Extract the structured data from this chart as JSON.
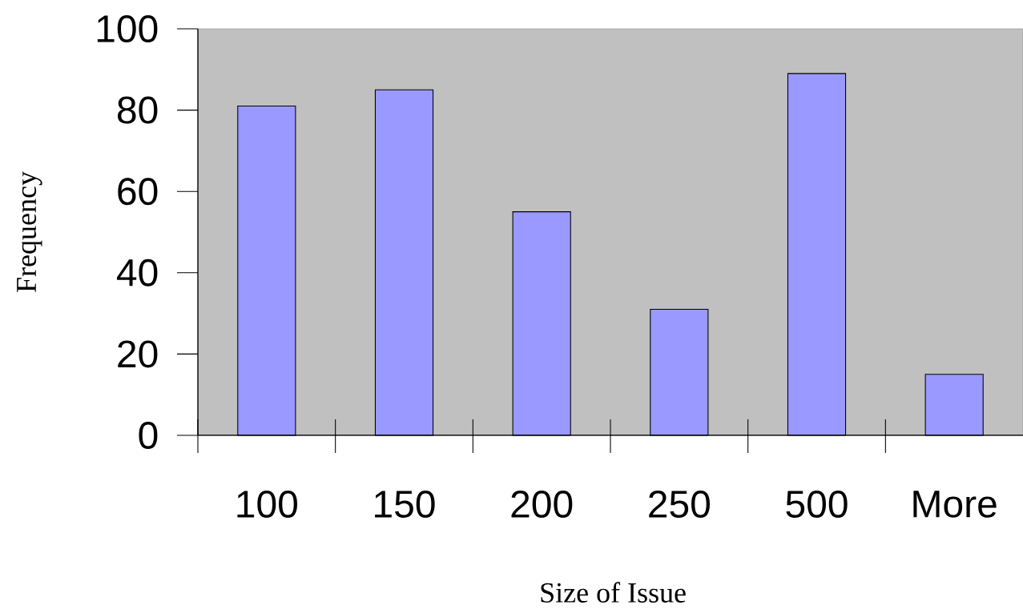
{
  "chart_data": {
    "type": "bar",
    "categories": [
      "100",
      "150",
      "200",
      "250",
      "500",
      "More"
    ],
    "values": [
      81,
      85,
      55,
      31,
      89,
      15
    ],
    "color": "#9999ff",
    "ylim": [
      0,
      100
    ],
    "yticks": [
      0,
      20,
      40,
      60,
      80,
      100
    ],
    "xlabel": "Size of Issue",
    "ylabel": "Frequency"
  }
}
